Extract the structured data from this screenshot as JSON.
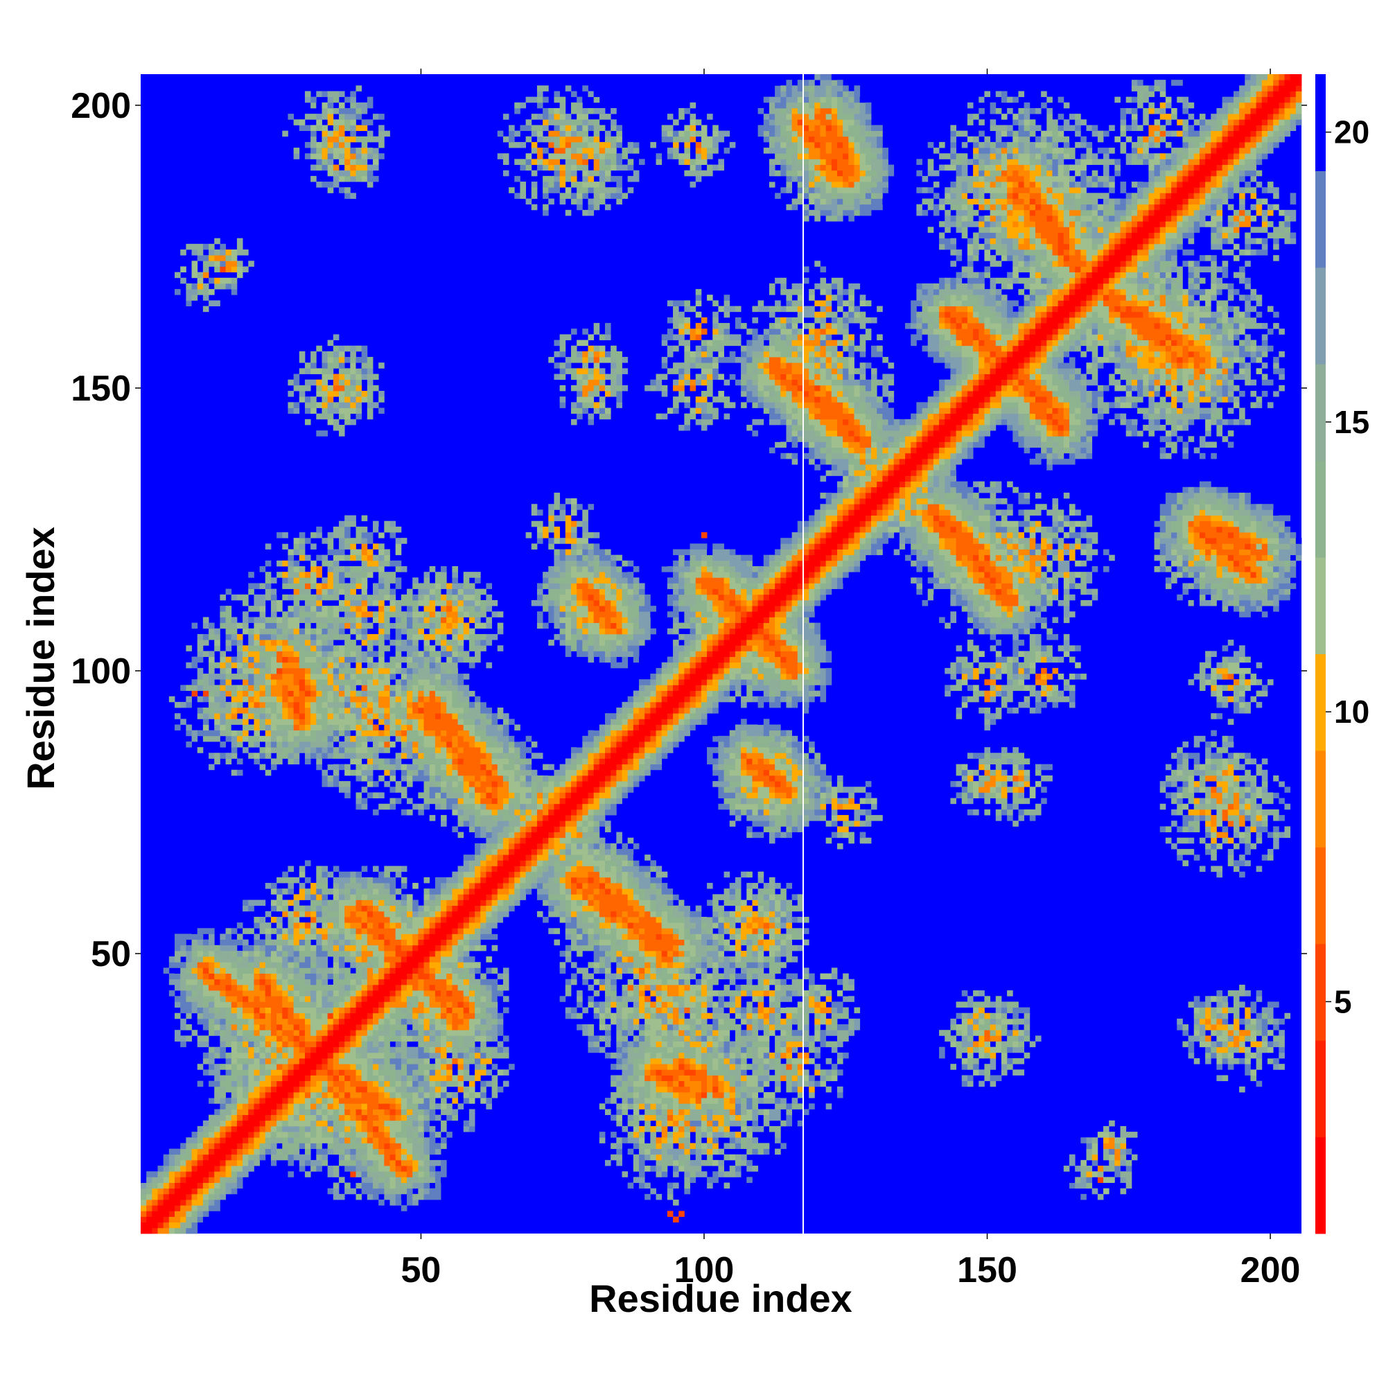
{
  "chart_data": {
    "type": "heatmap",
    "title": "",
    "xlabel": "Residue index",
    "ylabel": "Residue index",
    "xlim": [
      1,
      205
    ],
    "ylim": [
      1,
      205
    ],
    "x_ticks": [
      50,
      100,
      150,
      200
    ],
    "y_ticks": [
      50,
      100,
      150,
      200
    ],
    "colorbar": {
      "range": [
        1,
        21
      ],
      "ticks": [
        5,
        10,
        15,
        20
      ],
      "colors": [
        "#ff0000",
        "#ff2200",
        "#ff4400",
        "#ff6600",
        "#ff8800",
        "#ffaa00",
        "#9fbf8f",
        "#8db48f",
        "#8fae9a",
        "#7f9fb0",
        "#5f7fc0",
        "#0000ff"
      ]
    },
    "background_color": "#0000ff",
    "diagonal_band": {
      "from": 1,
      "to": 205
    },
    "vertical_rule_x": 118,
    "contact_segments": [
      {
        "x": [
          12,
          30
        ],
        "y": [
          47,
          33
        ],
        "w": 5
      },
      {
        "x": [
          30,
          45
        ],
        "y": [
          33,
          22
        ],
        "w": 5
      },
      {
        "x": [
          38,
          58
        ],
        "y": [
          57,
          40
        ],
        "w": 5
      },
      {
        "x": [
          50,
          63
        ],
        "y": [
          93,
          77
        ],
        "w": 5
      },
      {
        "x": [
          26,
          30
        ],
        "y": [
          102,
          96
        ],
        "w": 4
      },
      {
        "x": [
          79,
          95
        ],
        "y": [
          64,
          51
        ],
        "w": 5
      },
      {
        "x": [
          79,
          84
        ],
        "y": [
          114,
          108
        ],
        "w": 4
      },
      {
        "x": [
          100,
          115
        ],
        "y": [
          116,
          102
        ],
        "w": 5
      },
      {
        "x": [
          109,
          114
        ],
        "y": [
          84,
          79
        ],
        "w": 4
      },
      {
        "x": [
          91,
          97
        ],
        "y": [
          29,
          26
        ],
        "w": 4
      },
      {
        "x": [
          112,
          128
        ],
        "y": [
          154,
          140
        ],
        "w": 5
      },
      {
        "x": [
          121,
          126
        ],
        "y": [
          198,
          188
        ],
        "w": 4
      },
      {
        "x": [
          142,
          153
        ],
        "y": [
          127,
          115
        ],
        "w": 5
      },
      {
        "x": [
          145,
          163
        ],
        "y": [
          163,
          143
        ],
        "w": 5
      },
      {
        "x": [
          155,
          166
        ],
        "y": [
          188,
          172
        ],
        "w": 5
      },
      {
        "x": [
          171,
          184
        ],
        "y": [
          166,
          155
        ],
        "w": 5
      },
      {
        "x": [
          187,
          197
        ],
        "y": [
          125,
          117
        ],
        "w": 4
      }
    ],
    "contact_clusters": [
      {
        "x": 30,
        "y": 28,
        "r": 18
      },
      {
        "x": 22,
        "y": 40,
        "r": 16
      },
      {
        "x": 45,
        "y": 50,
        "r": 16
      },
      {
        "x": 55,
        "y": 30,
        "r": 12
      },
      {
        "x": 25,
        "y": 100,
        "r": 17
      },
      {
        "x": 40,
        "y": 95,
        "r": 14
      },
      {
        "x": 30,
        "y": 115,
        "r": 11
      },
      {
        "x": 55,
        "y": 110,
        "r": 9
      },
      {
        "x": 60,
        "y": 82,
        "r": 12
      },
      {
        "x": 75,
        "y": 72,
        "r": 9
      },
      {
        "x": 80,
        "y": 112,
        "r": 10
      },
      {
        "x": 90,
        "y": 45,
        "r": 16
      },
      {
        "x": 95,
        "y": 20,
        "r": 14
      },
      {
        "x": 108,
        "y": 55,
        "r": 10
      },
      {
        "x": 110,
        "y": 40,
        "r": 9
      },
      {
        "x": 105,
        "y": 108,
        "r": 12
      },
      {
        "x": 112,
        "y": 80,
        "r": 10
      },
      {
        "x": 120,
        "y": 160,
        "r": 12
      },
      {
        "x": 120,
        "y": 195,
        "r": 10
      },
      {
        "x": 155,
        "y": 185,
        "r": 18
      },
      {
        "x": 180,
        "y": 160,
        "r": 18
      },
      {
        "x": 150,
        "y": 120,
        "r": 14
      },
      {
        "x": 190,
        "y": 122,
        "r": 11
      },
      {
        "x": 130,
        "y": 135,
        "r": 10
      },
      {
        "x": 75,
        "y": 192,
        "r": 12
      },
      {
        "x": 35,
        "y": 195,
        "r": 9
      },
      {
        "x": 100,
        "y": 160,
        "r": 8
      },
      {
        "x": 35,
        "y": 150,
        "r": 9
      },
      {
        "x": 190,
        "y": 80,
        "r": 9
      },
      {
        "x": 180,
        "y": 195,
        "r": 10
      },
      {
        "x": 150,
        "y": 98,
        "r": 8
      },
      {
        "x": 150,
        "y": 35,
        "r": 7
      },
      {
        "x": 190,
        "y": 37,
        "r": 7
      },
      {
        "x": 170,
        "y": 12,
        "r": 6
      },
      {
        "x": 193,
        "y": 98,
        "r": 7
      },
      {
        "x": 120,
        "y": 40,
        "r": 8
      },
      {
        "x": 125,
        "y": 75,
        "r": 7
      },
      {
        "x": 80,
        "y": 150,
        "r": 7
      },
      {
        "x": 15,
        "y": 172,
        "r": 5
      },
      {
        "x": 155,
        "y": 80,
        "r": 7
      }
    ],
    "isolated_contacts": [
      {
        "x": 95,
        "y": 3
      },
      {
        "x": 94,
        "y": 4
      },
      {
        "x": 96,
        "y": 4
      },
      {
        "x": 10,
        "y": 96
      },
      {
        "x": 12,
        "y": 96
      },
      {
        "x": 15,
        "y": 171
      },
      {
        "x": 38,
        "y": 11
      },
      {
        "x": 170,
        "y": 10
      },
      {
        "x": 34,
        "y": 39
      },
      {
        "x": 100,
        "y": 124
      }
    ]
  }
}
